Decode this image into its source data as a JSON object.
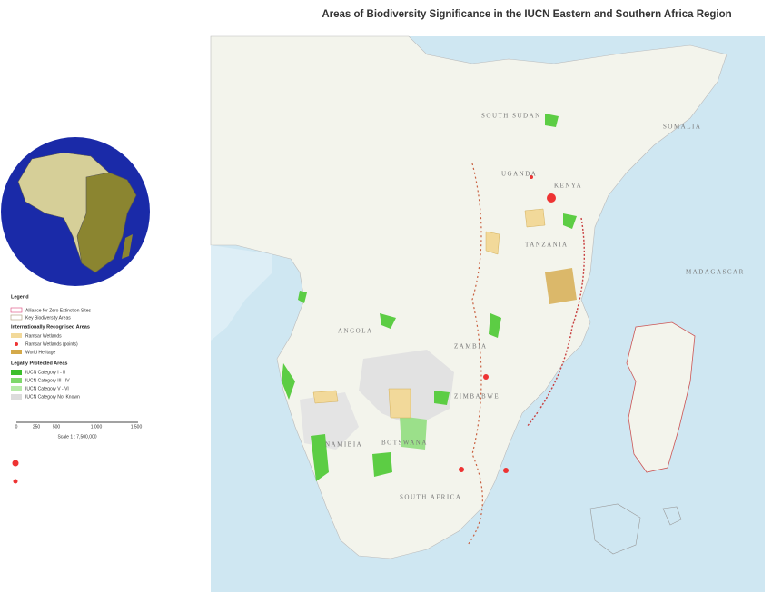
{
  "header": {
    "title": "Areas of Biodiversity Significance in the IUCN Eastern and Southern Africa Region"
  },
  "legend": {
    "title": "Legend",
    "items": [
      "Alliance for Zero Extinction Sites",
      "Key Biodiversity Areas"
    ],
    "groups": [
      {
        "title": "Internationally Recognised Areas",
        "items": [
          "Ramsar Wetlands",
          "Ramsar Wetlands (points)",
          "World Heritage"
        ]
      },
      {
        "title": "Legally Protected Areas",
        "items": [
          "IUCN Category I - II",
          "IUCN Category III - IV",
          "IUCN Category V - VI",
          "IUCN Category Not Known"
        ]
      }
    ]
  },
  "scale": {
    "ticks": [
      "0",
      "250",
      "500",
      "1 000",
      "1 500"
    ],
    "label": "Scale 1 : 7,500,000"
  },
  "map": {
    "labels": [
      "SOUTH SUDAN",
      "SOMALIA",
      "UGANDA",
      "KENYA",
      "TANZANIA",
      "ANGOLA",
      "ZAMBIA",
      "ZIMBABWE",
      "NAMIBIA",
      "BOTSWANA",
      "SOUTH AFRICA",
      "MADAGASCAR"
    ]
  }
}
